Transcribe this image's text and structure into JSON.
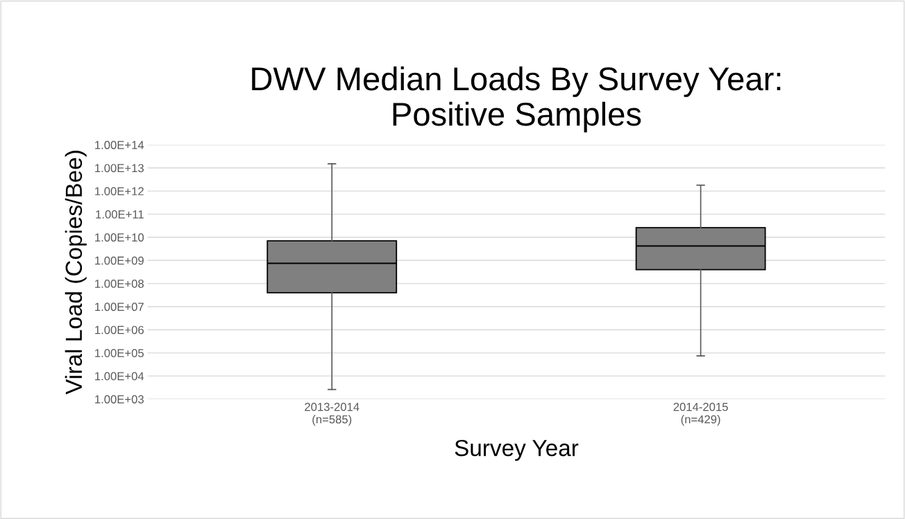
{
  "chart_data": {
    "type": "box",
    "title": "DWV Median Loads By Survey Year:\nPositive Samples",
    "xlabel": "Survey Year",
    "ylabel": "Viral Load (Copies/Bee)",
    "categories": [
      "2013-2014\n(n=585)",
      "2014-2015\n(n=429)"
    ],
    "boxes": [
      {
        "low": 2600,
        "q1": 40000000,
        "median": 750000000,
        "q3": 7000000000,
        "high": 15000000000000
      },
      {
        "low": 74000,
        "q1": 400000000,
        "median": 4200000000,
        "q3": 26000000000,
        "high": 1800000000000
      }
    ],
    "color": "#808080",
    "log": "y",
    "grid": "y",
    "ylim": [
      1000,
      100000000000000
    ],
    "yticks": [
      {
        "value": 1000,
        "label": "1.00E+03"
      },
      {
        "value": 10000,
        "label": "1.00E+04"
      },
      {
        "value": 100000,
        "label": "1.00E+05"
      },
      {
        "value": 1000000,
        "label": "1.00E+06"
      },
      {
        "value": 10000000,
        "label": "1.00E+07"
      },
      {
        "value": 100000000,
        "label": "1.00E+08"
      },
      {
        "value": 1000000000,
        "label": "1.00E+09"
      },
      {
        "value": 10000000000,
        "label": "1.00E+10"
      },
      {
        "value": 100000000000,
        "label": "1.00E+11"
      },
      {
        "value": 1000000000000,
        "label": "1.00E+12"
      },
      {
        "value": 10000000000000,
        "label": "1.00E+13"
      },
      {
        "value": 100000000000000,
        "label": "1.00E+14"
      }
    ]
  }
}
